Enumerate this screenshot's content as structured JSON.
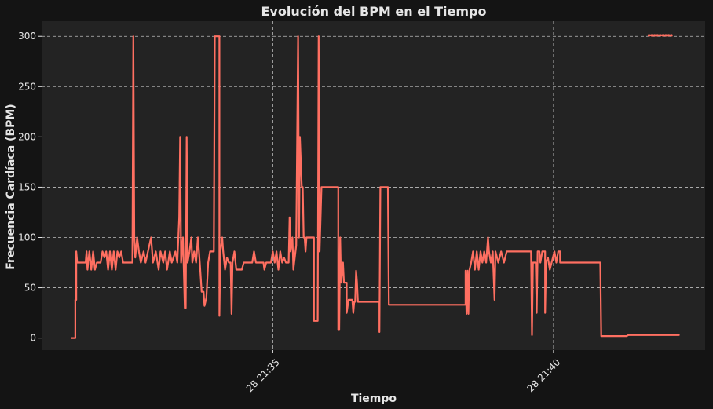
{
  "chart_data": {
    "type": "line",
    "title": "Evolución del BPM en el Tiempo",
    "xlabel": "Tiempo",
    "ylabel": "Frecuencia Cardíaca (BPM)",
    "ylim": [
      -12,
      315
    ],
    "yticks": [
      0,
      50,
      100,
      150,
      200,
      250,
      300
    ],
    "xticks": [
      {
        "value": 0,
        "label": "28 21:35"
      },
      {
        "value": 300,
        "label": "28 21:40"
      }
    ],
    "x_unit": "seconds relative to 28 21:35",
    "xlim": [
      -247,
      462
    ],
    "grid": true,
    "colors": {
      "background": "#141414",
      "plot_background": "#232323",
      "line": "#ff6f61",
      "grid": "#bdbdbd",
      "text": "#e6e6e6"
    },
    "series": [
      {
        "points": [
          [
            -215,
            0
          ],
          [
            -211,
            0
          ],
          [
            -211,
            38
          ],
          [
            -210,
            38
          ],
          [
            -210,
            86
          ],
          [
            -209,
            75
          ],
          [
            -200,
            75
          ],
          [
            -199,
            86
          ],
          [
            -198,
            68
          ],
          [
            -196,
            86
          ],
          [
            -194,
            68
          ],
          [
            -192,
            86
          ],
          [
            -190,
            68
          ],
          [
            -188,
            75
          ],
          [
            -184,
            75
          ],
          [
            -182,
            86
          ],
          [
            -180,
            80
          ],
          [
            -178,
            86
          ],
          [
            -176,
            68
          ],
          [
            -174,
            86
          ],
          [
            -172,
            68
          ],
          [
            -170,
            86
          ],
          [
            -168,
            68
          ],
          [
            -166,
            86
          ],
          [
            -164,
            80
          ],
          [
            -162,
            86
          ],
          [
            -160,
            75
          ],
          [
            -150,
            75
          ],
          [
            -149,
            300
          ],
          [
            -148,
            100
          ],
          [
            -147,
            80
          ],
          [
            -145,
            100
          ],
          [
            -143,
            86
          ],
          [
            -141,
            75
          ],
          [
            -138,
            86
          ],
          [
            -136,
            75
          ],
          [
            -132,
            92
          ],
          [
            -130,
            100
          ],
          [
            -128,
            75
          ],
          [
            -125,
            86
          ],
          [
            -122,
            68
          ],
          [
            -120,
            86
          ],
          [
            -117,
            75
          ],
          [
            -115,
            86
          ],
          [
            -113,
            68
          ],
          [
            -110,
            86
          ],
          [
            -108,
            75
          ],
          [
            -104,
            86
          ],
          [
            -102,
            75
          ],
          [
            -100,
            120
          ],
          [
            -99,
            200
          ],
          [
            -98,
            75
          ],
          [
            -96,
            100
          ],
          [
            -94,
            30
          ],
          [
            -93,
            30
          ],
          [
            -92,
            200
          ],
          [
            -91,
            75
          ],
          [
            -89,
            86
          ],
          [
            -87,
            100
          ],
          [
            -86,
            75
          ],
          [
            -84,
            86
          ],
          [
            -82,
            75
          ],
          [
            -80,
            100
          ],
          [
            -78,
            75
          ],
          [
            -76,
            46
          ],
          [
            -74,
            46
          ],
          [
            -73,
            32
          ],
          [
            -71,
            40
          ],
          [
            -69,
            75
          ],
          [
            -67,
            86
          ],
          [
            -63,
            86
          ],
          [
            -62,
            300
          ],
          [
            -57,
            300
          ],
          [
            -57,
            22
          ],
          [
            -56,
            86
          ],
          [
            -54,
            100
          ],
          [
            -53,
            86
          ],
          [
            -51,
            68
          ],
          [
            -49,
            80
          ],
          [
            -47,
            75
          ],
          [
            -45,
            75
          ],
          [
            -44,
            24
          ],
          [
            -43,
            75
          ],
          [
            -41,
            86
          ],
          [
            -39,
            68
          ],
          [
            -33,
            68
          ],
          [
            -31,
            75
          ],
          [
            -22,
            75
          ],
          [
            -20,
            86
          ],
          [
            -18,
            75
          ],
          [
            -10,
            75
          ],
          [
            -9,
            68
          ],
          [
            -7,
            75
          ],
          [
            -2,
            75
          ],
          [
            0,
            86
          ],
          [
            2,
            75
          ],
          [
            4,
            86
          ],
          [
            6,
            68
          ],
          [
            8,
            86
          ],
          [
            10,
            75
          ],
          [
            12,
            80
          ],
          [
            14,
            75
          ],
          [
            17,
            75
          ],
          [
            18,
            120
          ],
          [
            19,
            86
          ],
          [
            21,
            100
          ],
          [
            22,
            68
          ],
          [
            25,
            92
          ],
          [
            27,
            300
          ],
          [
            28,
            100
          ],
          [
            29,
            200
          ],
          [
            31,
            150
          ],
          [
            32,
            150
          ],
          [
            33,
            100
          ],
          [
            34,
            100
          ],
          [
            35,
            86
          ],
          [
            36,
            100
          ],
          [
            44,
            100
          ],
          [
            44,
            17
          ],
          [
            48,
            17
          ],
          [
            49,
            300
          ],
          [
            50,
            86
          ],
          [
            52,
            150
          ],
          [
            70,
            150
          ],
          [
            70,
            8
          ],
          [
            71,
            8
          ],
          [
            72,
            100
          ],
          [
            73,
            55
          ],
          [
            75,
            75
          ],
          [
            76,
            55
          ],
          [
            79,
            55
          ],
          [
            79,
            25
          ],
          [
            81,
            38
          ],
          [
            85,
            38
          ],
          [
            86,
            25
          ],
          [
            87,
            36
          ],
          [
            88,
            36
          ],
          [
            89,
            67
          ],
          [
            90,
            56
          ],
          [
            91,
            36
          ],
          [
            114,
            36
          ],
          [
            114,
            6
          ],
          [
            115,
            150
          ],
          [
            123,
            150
          ],
          [
            124,
            33
          ],
          [
            206,
            33
          ],
          [
            206,
            67
          ],
          [
            207,
            24
          ],
          [
            208,
            67
          ],
          [
            209,
            24
          ],
          [
            210,
            67
          ],
          [
            212,
            75
          ],
          [
            214,
            86
          ],
          [
            216,
            68
          ],
          [
            218,
            86
          ],
          [
            220,
            68
          ],
          [
            222,
            86
          ],
          [
            224,
            75
          ],
          [
            226,
            86
          ],
          [
            228,
            75
          ],
          [
            230,
            100
          ],
          [
            231,
            86
          ],
          [
            233,
            75
          ],
          [
            235,
            86
          ],
          [
            237,
            38
          ],
          [
            238,
            86
          ],
          [
            241,
            75
          ],
          [
            244,
            86
          ],
          [
            247,
            75
          ],
          [
            250,
            86
          ],
          [
            255,
            86
          ],
          [
            276,
            86
          ],
          [
            277,
            3
          ],
          [
            278,
            75
          ],
          [
            281,
            75
          ],
          [
            282,
            25
          ],
          [
            283,
            86
          ],
          [
            285,
            86
          ],
          [
            286,
            75
          ],
          [
            288,
            86
          ],
          [
            291,
            86
          ],
          [
            291,
            25
          ],
          [
            292,
            75
          ],
          [
            294,
            80
          ],
          [
            296,
            68
          ],
          [
            298,
            75
          ],
          [
            301,
            86
          ],
          [
            303,
            75
          ],
          [
            305,
            86
          ],
          [
            307,
            86
          ],
          [
            307,
            75
          ],
          [
            350,
            75
          ],
          [
            351,
            2
          ],
          [
            378,
            2
          ],
          [
            380,
            3
          ],
          [
            434,
            3
          ]
        ]
      },
      {
        "points": [
          [
            402,
            301
          ],
          [
            405,
            301
          ],
          [
            408,
            301
          ],
          [
            411,
            301
          ],
          [
            414,
            301
          ],
          [
            417,
            301
          ],
          [
            420,
            301
          ],
          [
            423,
            301
          ],
          [
            426,
            301
          ]
        ]
      }
    ]
  }
}
